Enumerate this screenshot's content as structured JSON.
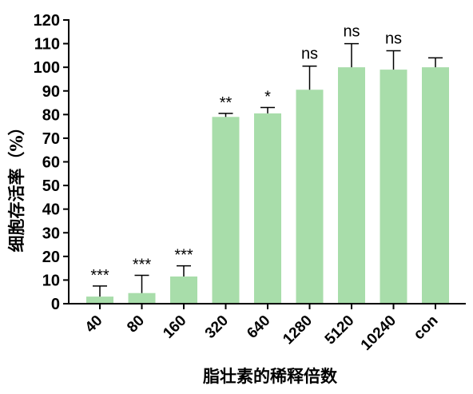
{
  "chart_data": {
    "type": "bar",
    "title": "",
    "xlabel": "脂壮素的稀释倍数",
    "ylabel": "细胞存活率（%）",
    "ylim": [
      0,
      120
    ],
    "yticks": [
      0,
      10,
      20,
      30,
      40,
      50,
      60,
      70,
      80,
      90,
      100,
      110,
      120
    ],
    "categories": [
      "40",
      "80",
      "160",
      "320",
      "640",
      "1280",
      "5120",
      "10240",
      "con"
    ],
    "values": [
      3,
      4.5,
      11.5,
      79,
      80.5,
      90.5,
      100,
      99,
      100
    ],
    "error_upper": [
      7.5,
      12,
      16,
      80.5,
      83,
      100.5,
      110,
      107,
      104
    ],
    "significance": [
      "***",
      "***",
      "***",
      "**",
      "*",
      "ns",
      "ns",
      "ns",
      ""
    ],
    "bar_color": "#a8ddaa",
    "grid": false
  }
}
